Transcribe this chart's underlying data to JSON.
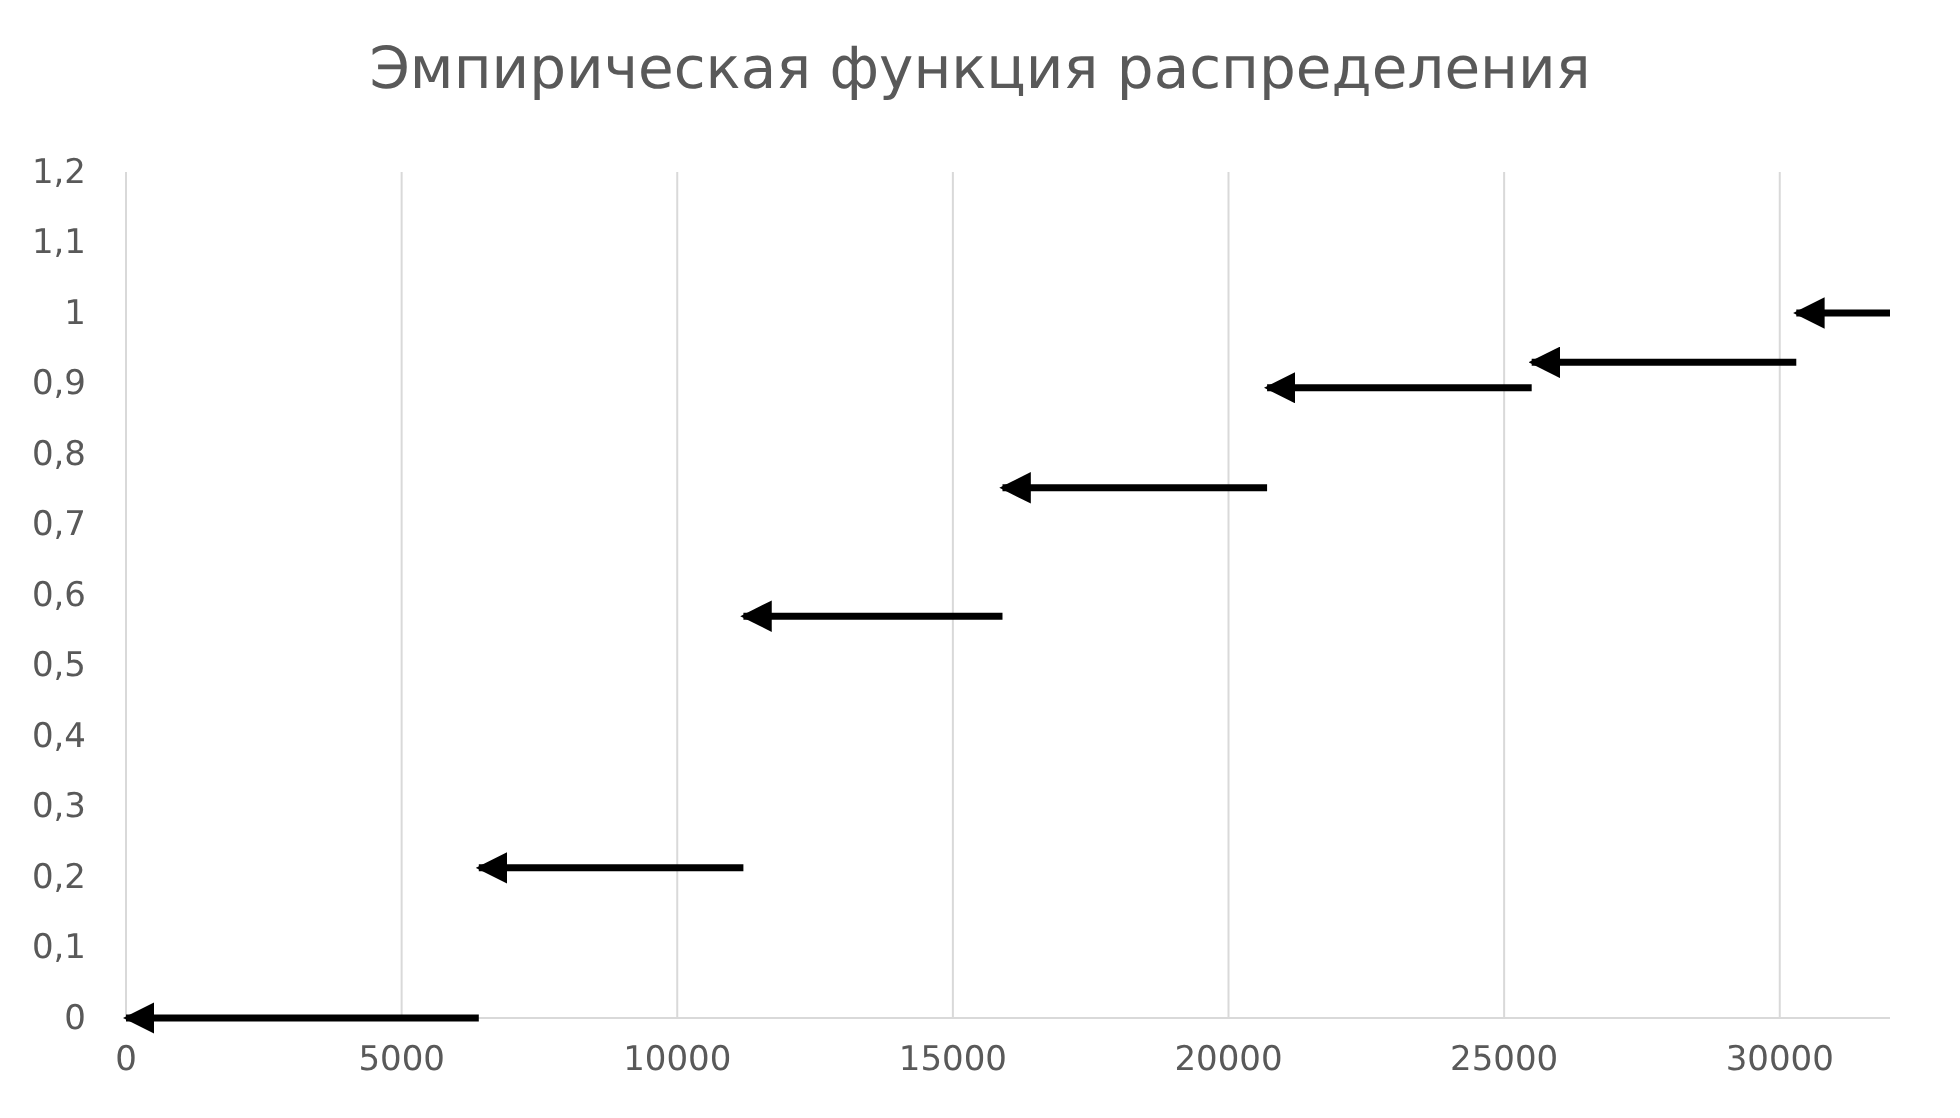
{
  "chart_data": {
    "type": "line",
    "title": "Эмпирическая функция распределения",
    "xlim": [
      0,
      32000
    ],
    "xticks": [
      0,
      5000,
      10000,
      15000,
      20000,
      25000,
      30000
    ],
    "ylim": [
      0,
      1.2
    ],
    "yticks": [
      0,
      {
        "value": 0.1,
        "label": "0,1"
      },
      {
        "value": 0.2,
        "label": "0,2"
      },
      {
        "value": 0.3,
        "label": "0,3"
      },
      {
        "value": 0.4,
        "label": "0,4"
      },
      {
        "value": 0.5,
        "label": "0,5"
      },
      {
        "value": 0.6,
        "label": "0,6"
      },
      {
        "value": 0.7,
        "label": "0,7"
      },
      {
        "value": 0.8,
        "label": "0,8"
      },
      {
        "value": 0.9,
        "label": "0,9"
      },
      1,
      {
        "value": 1.1,
        "label": "1,1"
      },
      {
        "value": 1.2,
        "label": "1,2"
      }
    ],
    "grid": "x",
    "series": [
      {
        "color": "#000000",
        "x": [
          0,
          6400
        ],
        "values": [
          0,
          0
        ]
      },
      {
        "color": "#000000",
        "x": [
          6400,
          11200
        ],
        "values": [
          0.213,
          0.213
        ]
      },
      {
        "color": "#000000",
        "x": [
          11200,
          15900
        ],
        "values": [
          0.57,
          0.57
        ]
      },
      {
        "color": "#000000",
        "x": [
          15900,
          20700
        ],
        "values": [
          0.752,
          0.752
        ]
      },
      {
        "color": "#000000",
        "x": [
          20700,
          25500
        ],
        "values": [
          0.894,
          0.894
        ]
      },
      {
        "color": "#000000",
        "x": [
          25500,
          30300
        ],
        "values": [
          0.93,
          0.93
        ]
      },
      {
        "color": "#000000",
        "x": [
          30300,
          32000
        ],
        "values": [
          1,
          1
        ]
      }
    ]
  }
}
